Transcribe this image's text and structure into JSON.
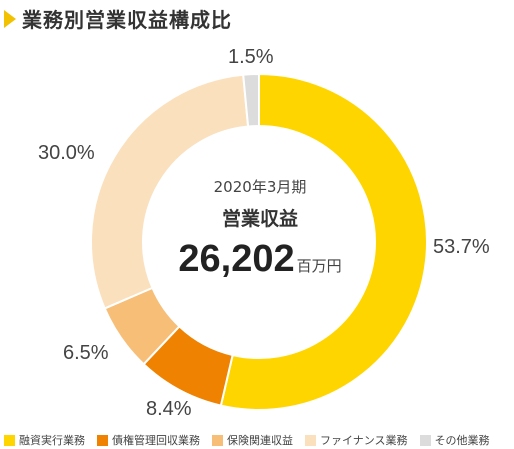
{
  "title": "業務別営業収益構成比",
  "center": {
    "date": "2020年3月期",
    "label": "営業収益",
    "value": "26,202",
    "unit": "百万円"
  },
  "chart_data": {
    "type": "pie",
    "title": "業務別営業収益構成比",
    "categories": [
      "融資実行業務",
      "債権管理回収業務",
      "保険関連収益",
      "ファイナンス業務",
      "その他業務"
    ],
    "values": [
      53.7,
      8.4,
      6.5,
      30.0,
      1.5
    ],
    "labels": [
      "53.7%",
      "8.4%",
      "6.5%",
      "30.0%",
      "1.5%"
    ],
    "colors": [
      "#ffd500",
      "#ef8200",
      "#f7be78",
      "#fae0bd",
      "#dcdcdc"
    ],
    "legend": "bottom"
  }
}
